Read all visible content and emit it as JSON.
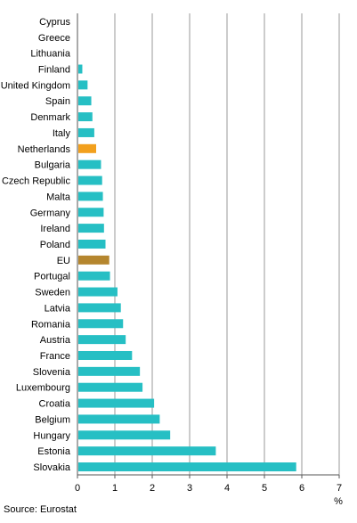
{
  "source": "Source: Eurostat",
  "chart_data": {
    "type": "bar",
    "orientation": "horizontal",
    "title": "",
    "xlabel": "%",
    "ylabel": "",
    "xlim": [
      0,
      7
    ],
    "xticks": [
      "0",
      "1",
      "2",
      "3",
      "4",
      "5",
      "6",
      "7"
    ],
    "grid": "vertical",
    "legend": "none",
    "categories": [
      "Cyprus",
      "Greece",
      "Lithuania",
      "Finland",
      "United Kingdom",
      "Spain",
      "Denmark",
      "Italy",
      "Netherlands",
      "Bulgaria",
      "Czech Republic",
      "Malta",
      "Germany",
      "Ireland",
      "Poland",
      "EU",
      "Portugal",
      "Sweden",
      "Latvia",
      "Romania",
      "Austria",
      "France",
      "Slovenia",
      "Luxembourg",
      "Croatia",
      "Belgium",
      "Hungary",
      "Estonia",
      "Slovakia"
    ],
    "values": [
      0,
      0,
      0,
      0.13,
      0.27,
      0.37,
      0.4,
      0.45,
      0.5,
      0.63,
      0.66,
      0.68,
      0.7,
      0.71,
      0.75,
      0.85,
      0.87,
      1.07,
      1.16,
      1.22,
      1.29,
      1.46,
      1.67,
      1.74,
      2.05,
      2.2,
      2.48,
      3.7,
      5.85
    ],
    "colors": {
      "default": "#26bfc4",
      "Netherlands": "#f2a01d",
      "EU": "#b5862e",
      "grid": "#999999",
      "axis": "#555555"
    }
  }
}
